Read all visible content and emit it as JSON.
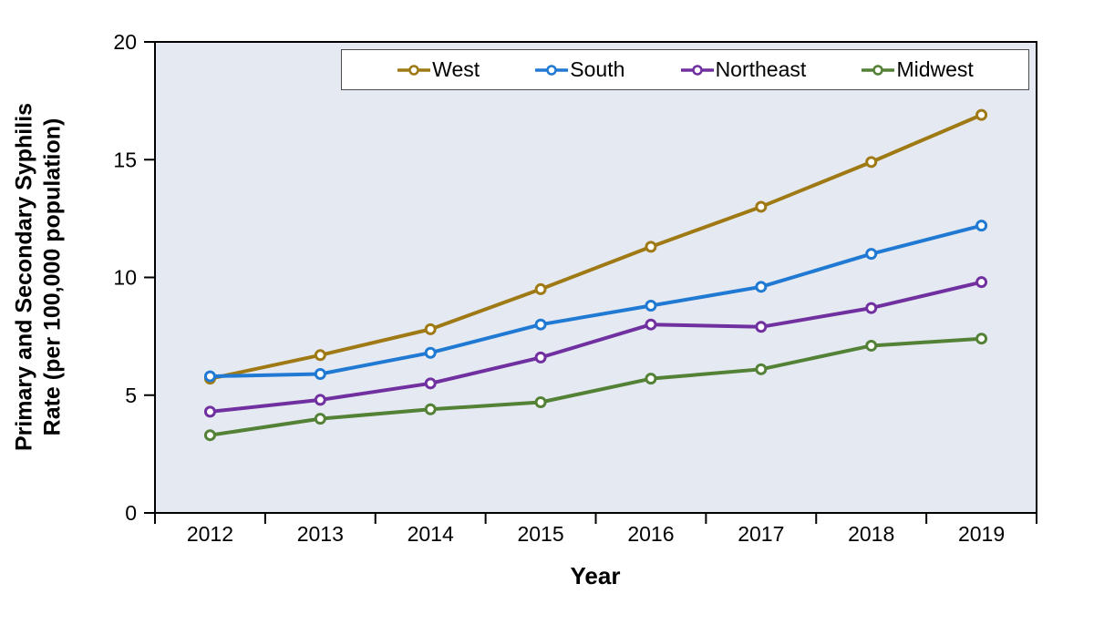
{
  "chart_data": {
    "type": "line",
    "title": "",
    "xlabel": "Year",
    "ylabel_lines": [
      "Primary and Secondary Syphilis",
      "Rate (per 100,000 population)"
    ],
    "categories": [
      "2012",
      "2013",
      "2014",
      "2015",
      "2016",
      "2017",
      "2018",
      "2019"
    ],
    "series": [
      {
        "name": "West",
        "color": "#9E7914",
        "values": [
          5.7,
          6.7,
          7.8,
          9.5,
          11.3,
          13.0,
          14.9,
          16.9
        ]
      },
      {
        "name": "South",
        "color": "#2079D2",
        "values": [
          5.8,
          5.9,
          6.8,
          8.0,
          8.8,
          9.6,
          11.0,
          12.2
        ]
      },
      {
        "name": "Northeast",
        "color": "#7030A0",
        "values": [
          4.3,
          4.8,
          5.5,
          6.6,
          8.0,
          7.9,
          8.7,
          9.8
        ]
      },
      {
        "name": "Midwest",
        "color": "#538135",
        "values": [
          3.3,
          4.0,
          4.4,
          4.7,
          5.7,
          6.1,
          7.1,
          7.4
        ]
      }
    ],
    "y_axis": {
      "min": 0,
      "max": 20,
      "ticks": [
        0,
        5,
        10,
        15,
        20
      ]
    },
    "legend_position": "top",
    "grid": "off",
    "plot_bg": "#E5E9F2",
    "axis_color": "#000000",
    "legend_border_color": "#4d4d4d"
  }
}
